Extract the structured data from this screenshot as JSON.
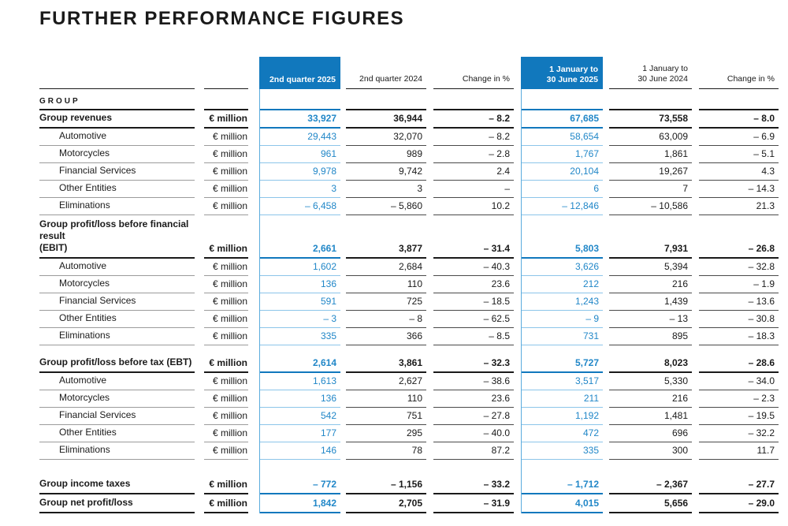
{
  "title": "FURTHER PERFORMANCE FIGURES",
  "colors": {
    "accent": "#1178bd",
    "accent-text": "#2187c8",
    "rule-light-blue": "#8cc5e9",
    "rule-mid-blue": "#5aabdd",
    "ink": "#1a1a1a",
    "rule-gray": "#9b9b9b",
    "rule-mid": "#4a4a4a"
  },
  "table": {
    "unit_label": "€ million",
    "section_label": "GROUP",
    "headers": [
      {
        "label": "2nd quarter 2025",
        "highlight": true
      },
      {
        "label": "2nd quarter 2024",
        "highlight": false
      },
      {
        "label": "Change in %",
        "highlight": false
      },
      {
        "label": "1 January to\n30 June 2025",
        "highlight": true
      },
      {
        "label": "1 January to\n30 June 2024",
        "highlight": false
      },
      {
        "label": "Change in %",
        "highlight": false
      }
    ],
    "sections": [
      {
        "rows": [
          {
            "label": "Group revenues",
            "bold": true,
            "indent": false,
            "values": [
              "33,927",
              "36,944",
              "– 8.2",
              "67,685",
              "73,558",
              "– 8.0"
            ]
          },
          {
            "label": "Automotive",
            "bold": false,
            "indent": true,
            "values": [
              "29,443",
              "32,070",
              "– 8.2",
              "58,654",
              "63,009",
              "– 6.9"
            ]
          },
          {
            "label": "Motorcycles",
            "bold": false,
            "indent": true,
            "values": [
              "961",
              "989",
              "– 2.8",
              "1,767",
              "1,861",
              "– 5.1"
            ]
          },
          {
            "label": "Financial Services",
            "bold": false,
            "indent": true,
            "values": [
              "9,978",
              "9,742",
              "2.4",
              "20,104",
              "19,267",
              "4.3"
            ]
          },
          {
            "label": "Other Entities",
            "bold": false,
            "indent": true,
            "values": [
              "3",
              "3",
              "–",
              "6",
              "7",
              "– 14.3"
            ]
          },
          {
            "label": "Eliminations",
            "bold": false,
            "indent": true,
            "values": [
              "– 6,458",
              "– 5,860",
              "10.2",
              "– 12,846",
              "– 10,586",
              "21.3"
            ]
          }
        ]
      },
      {
        "rows": [
          {
            "label_lines": [
              "Group profit/loss before financial result",
              "(EBIT)"
            ],
            "bold": true,
            "two_line": true,
            "indent": false,
            "values": [
              "2,661",
              "3,877",
              "– 31.4",
              "5,803",
              "7,931",
              "– 26.8"
            ]
          },
          {
            "label": "Automotive",
            "bold": false,
            "indent": true,
            "values": [
              "1,602",
              "2,684",
              "– 40.3",
              "3,626",
              "5,394",
              "– 32.8"
            ]
          },
          {
            "label": "Motorcycles",
            "bold": false,
            "indent": true,
            "values": [
              "136",
              "110",
              "23.6",
              "212",
              "216",
              "– 1.9"
            ]
          },
          {
            "label": "Financial Services",
            "bold": false,
            "indent": true,
            "values": [
              "591",
              "725",
              "– 18.5",
              "1,243",
              "1,439",
              "– 13.6"
            ]
          },
          {
            "label": "Other Entities",
            "bold": false,
            "indent": true,
            "values": [
              "– 3",
              "– 8",
              "– 62.5",
              "– 9",
              "– 13",
              "– 30.8"
            ]
          },
          {
            "label": "Eliminations",
            "bold": false,
            "indent": true,
            "values": [
              "335",
              "366",
              "– 8.5",
              "731",
              "895",
              "– 18.3"
            ]
          }
        ]
      },
      {
        "rows": [
          {
            "label": "Group profit/loss before tax (EBT)",
            "bold": true,
            "indent": false,
            "values": [
              "2,614",
              "3,861",
              "– 32.3",
              "5,727",
              "8,023",
              "– 28.6"
            ]
          },
          {
            "label": "Automotive",
            "bold": false,
            "indent": true,
            "values": [
              "1,613",
              "2,627",
              "– 38.6",
              "3,517",
              "5,330",
              "– 34.0"
            ]
          },
          {
            "label": "Motorcycles",
            "bold": false,
            "indent": true,
            "values": [
              "136",
              "110",
              "23.6",
              "211",
              "216",
              "– 2.3"
            ]
          },
          {
            "label": "Financial Services",
            "bold": false,
            "indent": true,
            "values": [
              "542",
              "751",
              "– 27.8",
              "1,192",
              "1,481",
              "– 19.5"
            ]
          },
          {
            "label": "Other Entities",
            "bold": false,
            "indent": true,
            "values": [
              "177",
              "295",
              "– 40.0",
              "472",
              "696",
              "– 32.2"
            ]
          },
          {
            "label": "Eliminations",
            "bold": false,
            "indent": true,
            "values": [
              "146",
              "78",
              "87.2",
              "335",
              "300",
              "11.7"
            ]
          }
        ]
      },
      {
        "rows": [
          {
            "label": "Group income taxes",
            "bold": true,
            "indent": false,
            "values": [
              "– 772",
              "– 1,156",
              "– 33.2",
              "– 1,712",
              "– 2,367",
              "– 27.7"
            ]
          },
          {
            "label": "Group net profit/loss",
            "bold": true,
            "indent": false,
            "last": true,
            "values": [
              "1,842",
              "2,705",
              "– 31.9",
              "4,015",
              "5,656",
              "– 29.0"
            ]
          }
        ]
      }
    ]
  }
}
